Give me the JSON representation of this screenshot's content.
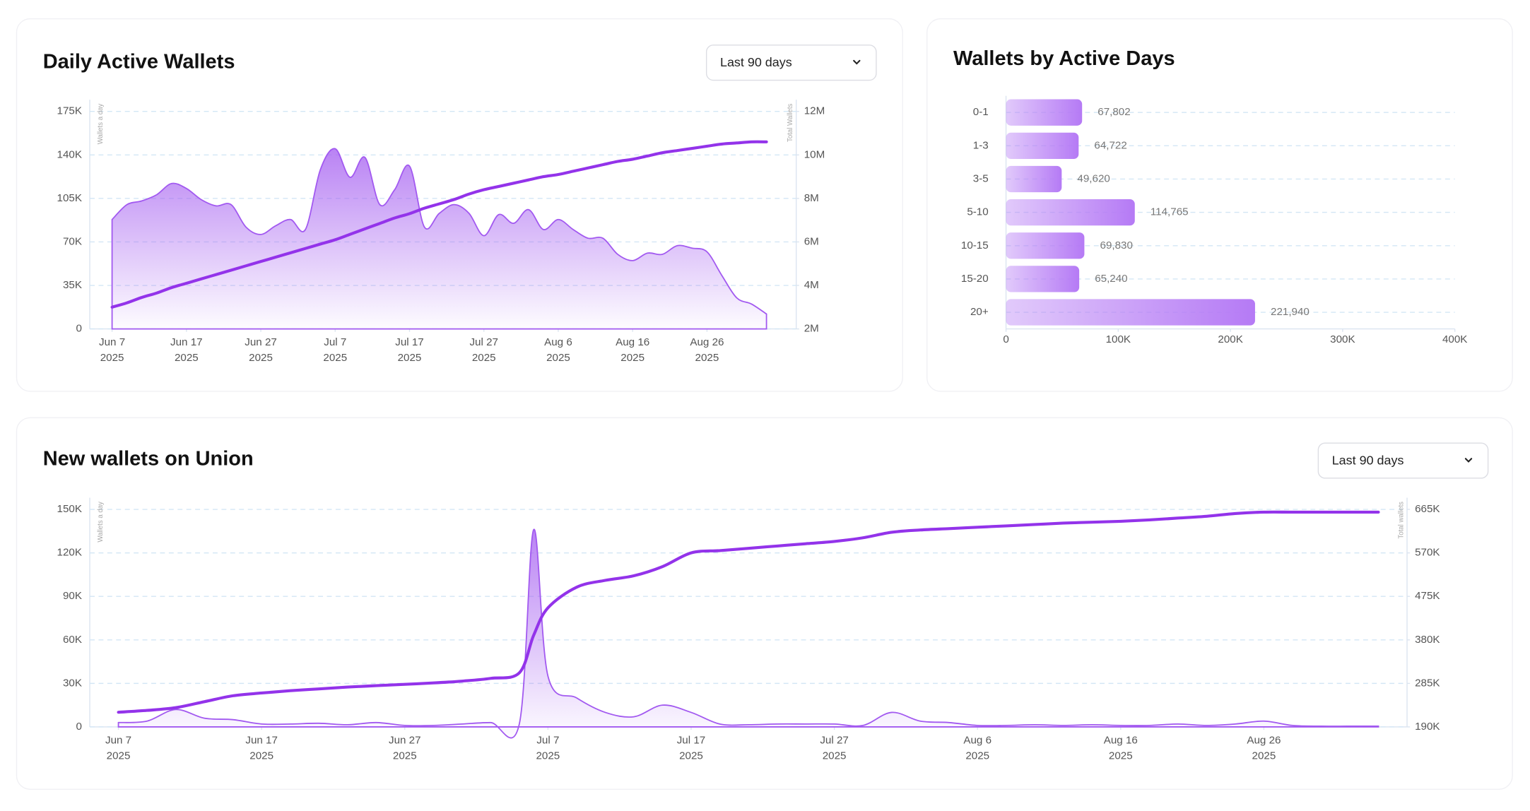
{
  "chart_data": [
    {
      "type": "line",
      "title": "Daily Active Wallets",
      "control": "Last 90 days",
      "y_label": "Wallets a day",
      "y2_label": "Total Wallets",
      "x": [
        "2025-06-07",
        "2025-06-09",
        "2025-06-11",
        "2025-06-13",
        "2025-06-15",
        "2025-06-17",
        "2025-06-19",
        "2025-06-21",
        "2025-06-23",
        "2025-06-25",
        "2025-06-27",
        "2025-06-29",
        "2025-07-01",
        "2025-07-03",
        "2025-07-05",
        "2025-07-07",
        "2025-07-09",
        "2025-07-11",
        "2025-07-13",
        "2025-07-15",
        "2025-07-17",
        "2025-07-19",
        "2025-07-21",
        "2025-07-23",
        "2025-07-25",
        "2025-07-27",
        "2025-07-29",
        "2025-07-31",
        "2025-08-02",
        "2025-08-04",
        "2025-08-06",
        "2025-08-08",
        "2025-08-10",
        "2025-08-12",
        "2025-08-14",
        "2025-08-16",
        "2025-08-18",
        "2025-08-20",
        "2025-08-22",
        "2025-08-24",
        "2025-08-26",
        "2025-08-28",
        "2025-08-30",
        "2025-09-01",
        "2025-09-03"
      ],
      "series": [
        {
          "color": "#a259f0",
          "style": "area",
          "values": [
            88000,
            100000,
            103000,
            108000,
            117000,
            113000,
            104000,
            99000,
            100000,
            82000,
            76000,
            83000,
            88000,
            80000,
            128000,
            145000,
            122000,
            138000,
            100000,
            112000,
            131000,
            82000,
            93000,
            100000,
            93000,
            75000,
            92000,
            85000,
            96000,
            80000,
            88000,
            80000,
            73000,
            73000,
            60000,
            55000,
            61000,
            60000,
            67000,
            65000,
            62000,
            43000,
            25000,
            20000,
            12000
          ]
        },
        {
          "color": "#9333ea",
          "axis": "y2",
          "values": [
            3000000,
            3200000,
            3450000,
            3650000,
            3900000,
            4100000,
            4300000,
            4500000,
            4700000,
            4900000,
            5100000,
            5300000,
            5500000,
            5700000,
            5900000,
            6100000,
            6350000,
            6600000,
            6850000,
            7100000,
            7300000,
            7550000,
            7750000,
            7950000,
            8200000,
            8400000,
            8550000,
            8700000,
            8850000,
            9000000,
            9100000,
            9250000,
            9400000,
            9550000,
            9700000,
            9800000,
            9950000,
            10100000,
            10200000,
            10300000,
            10400000,
            10500000,
            10550000,
            10600000,
            10600000
          ]
        }
      ],
      "xlim": [
        "2025-06-04",
        "2025-09-07"
      ],
      "xticks": [
        {
          "value": "2025-06-07",
          "label": [
            "Jun 7",
            "2025"
          ]
        },
        {
          "value": "2025-06-17",
          "label": [
            "Jun 17",
            "2025"
          ]
        },
        {
          "value": "2025-06-27",
          "label": [
            "Jun 27",
            "2025"
          ]
        },
        {
          "value": "2025-07-07",
          "label": [
            "Jul 7",
            "2025"
          ]
        },
        {
          "value": "2025-07-17",
          "label": [
            "Jul 17",
            "2025"
          ]
        },
        {
          "value": "2025-07-27",
          "label": [
            "Jul 27",
            "2025"
          ]
        },
        {
          "value": "2025-08-06",
          "label": [
            "Aug 6",
            "2025"
          ]
        },
        {
          "value": "2025-08-16",
          "label": [
            "Aug 16",
            "2025"
          ]
        },
        {
          "value": "2025-08-26",
          "label": [
            "Aug 26",
            "2025"
          ]
        }
      ],
      "ylim": [
        0,
        175000
      ],
      "yticks": [
        0,
        {
          "value": 35000,
          "label": "35K"
        },
        {
          "value": 70000,
          "label": "70K"
        },
        {
          "value": 105000,
          "label": "105K"
        },
        {
          "value": 140000,
          "label": "140K"
        },
        {
          "value": 175000,
          "label": "175K"
        }
      ],
      "y2lim": [
        2000000,
        12000000
      ],
      "y2ticks": [
        {
          "value": 2000000,
          "label": "2M"
        },
        {
          "value": 4000000,
          "label": "4M"
        },
        {
          "value": 6000000,
          "label": "6M"
        },
        {
          "value": 8000000,
          "label": "8M"
        },
        {
          "value": 10000000,
          "label": "10M"
        },
        {
          "value": 12000000,
          "label": "12M"
        }
      ],
      "grid": true
    },
    {
      "type": "bar",
      "orientation": "horizontal",
      "title": "Wallets by Active Days",
      "categories": [
        "0-1",
        "1-3",
        "3-5",
        "5-10",
        "10-15",
        "15-20",
        "20+"
      ],
      "values": [
        67802,
        64722,
        49620,
        114765,
        69830,
        65240,
        221940
      ],
      "value_labels": [
        "67,802",
        "64,722",
        "49,620",
        "114,765",
        "69,830",
        "65,240",
        "221,940"
      ],
      "color": "#b57af5",
      "xlim": [
        0,
        400000
      ],
      "xticks": [
        0,
        {
          "value": 100000,
          "label": "100K"
        },
        {
          "value": 200000,
          "label": "200K"
        },
        {
          "value": 300000,
          "label": "300K"
        },
        {
          "value": 400000,
          "label": "400K"
        }
      ]
    },
    {
      "type": "line",
      "title": "New wallets on Union",
      "control": "Last 90 days",
      "y_label": "Wallets a day",
      "y2_label": "Total wallets",
      "x": [
        "2025-06-07",
        "2025-06-09",
        "2025-06-11",
        "2025-06-13",
        "2025-06-15",
        "2025-06-17",
        "2025-06-19",
        "2025-06-21",
        "2025-06-23",
        "2025-06-25",
        "2025-06-27",
        "2025-06-29",
        "2025-07-01",
        "2025-07-03",
        "2025-07-05",
        "2025-07-06",
        "2025-07-07",
        "2025-07-09",
        "2025-07-11",
        "2025-07-13",
        "2025-07-15",
        "2025-07-17",
        "2025-07-19",
        "2025-07-21",
        "2025-07-23",
        "2025-07-25",
        "2025-07-27",
        "2025-07-29",
        "2025-07-31",
        "2025-08-02",
        "2025-08-04",
        "2025-08-06",
        "2025-08-08",
        "2025-08-10",
        "2025-08-12",
        "2025-08-14",
        "2025-08-16",
        "2025-08-18",
        "2025-08-20",
        "2025-08-22",
        "2025-08-24",
        "2025-08-26",
        "2025-08-28",
        "2025-08-30",
        "2025-09-01",
        "2025-09-03"
      ],
      "series": [
        {
          "color": "#a259f0",
          "style": "area",
          "values": [
            3000,
            4000,
            12000,
            6000,
            5000,
            2000,
            2000,
            2500,
            1500,
            3000,
            1000,
            1000,
            2000,
            3000,
            2000,
            136000,
            35000,
            20000,
            10000,
            7000,
            15000,
            10000,
            2000,
            1500,
            2000,
            2000,
            2000,
            1000,
            10000,
            4000,
            3000,
            1000,
            1000,
            1500,
            1000,
            1500,
            1000,
            1000,
            2000,
            1000,
            2000,
            4000,
            1000,
            500,
            500,
            500
          ]
        },
        {
          "color": "#9333ea",
          "axis": "y2",
          "values": [
            222000,
            226000,
            232000,
            245000,
            258000,
            264000,
            269000,
            273000,
            277000,
            280000,
            283000,
            286000,
            290000,
            296000,
            308000,
            390000,
            450000,
            495000,
            510000,
            520000,
            540000,
            570000,
            575000,
            580000,
            585000,
            590000,
            595000,
            603000,
            615000,
            620000,
            623000,
            626000,
            629000,
            632000,
            635000,
            637000,
            639000,
            642000,
            646000,
            650000,
            656000,
            659000,
            659000,
            659000,
            659000,
            659000
          ]
        }
      ],
      "xlim": [
        "2025-06-05",
        "2025-09-05"
      ],
      "xticks": [
        {
          "value": "2025-06-07",
          "label": [
            "Jun 7",
            "2025"
          ]
        },
        {
          "value": "2025-06-17",
          "label": [
            "Jun 17",
            "2025"
          ]
        },
        {
          "value": "2025-06-27",
          "label": [
            "Jun 27",
            "2025"
          ]
        },
        {
          "value": "2025-07-07",
          "label": [
            "Jul 7",
            "2025"
          ]
        },
        {
          "value": "2025-07-17",
          "label": [
            "Jul 17",
            "2025"
          ]
        },
        {
          "value": "2025-07-27",
          "label": [
            "Jul 27",
            "2025"
          ]
        },
        {
          "value": "2025-08-06",
          "label": [
            "Aug 6",
            "2025"
          ]
        },
        {
          "value": "2025-08-16",
          "label": [
            "Aug 16",
            "2025"
          ]
        },
        {
          "value": "2025-08-26",
          "label": [
            "Aug 26",
            "2025"
          ]
        }
      ],
      "ylim": [
        0,
        150000
      ],
      "yticks": [
        0,
        {
          "value": 30000,
          "label": "30K"
        },
        {
          "value": 60000,
          "label": "60K"
        },
        {
          "value": 90000,
          "label": "90K"
        },
        {
          "value": 120000,
          "label": "120K"
        },
        {
          "value": 150000,
          "label": "150K"
        }
      ],
      "y2lim": [
        190000,
        665000
      ],
      "y2ticks": [
        {
          "value": 190000,
          "label": "190K"
        },
        {
          "value": 285000,
          "label": "285K"
        },
        {
          "value": 380000,
          "label": "380K"
        },
        {
          "value": 475000,
          "label": "475K"
        },
        {
          "value": 570000,
          "label": "570K"
        },
        {
          "value": 665000,
          "label": "665K"
        }
      ],
      "grid": true
    }
  ]
}
